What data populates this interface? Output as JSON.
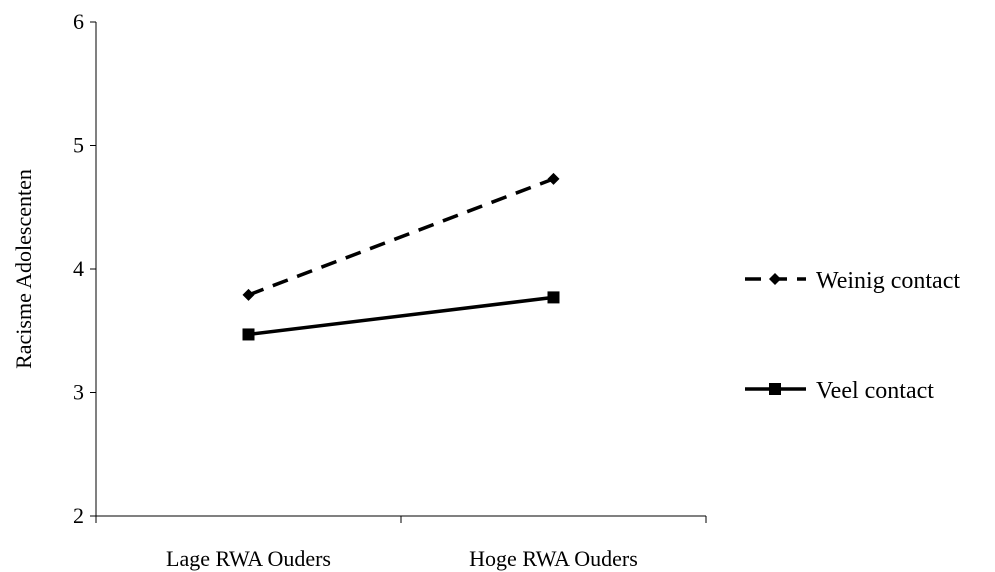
{
  "chart_data": {
    "type": "line",
    "title": "",
    "xlabel": "",
    "ylabel": "Racisme Adolescenten",
    "categories": [
      "Lage RWA Ouders",
      "Hoge RWA Ouders"
    ],
    "ylim": [
      2,
      6
    ],
    "yticks": [
      2,
      3,
      4,
      5,
      6
    ],
    "grid": false,
    "legend_position": "right",
    "series": [
      {
        "name": "Weinig contact",
        "values": [
          3.79,
          4.73
        ],
        "line_style": "dashed",
        "marker": "diamond",
        "color": "#000000"
      },
      {
        "name": "Veel contact",
        "values": [
          3.47,
          3.77
        ],
        "line_style": "solid",
        "marker": "square",
        "color": "#000000"
      }
    ]
  }
}
